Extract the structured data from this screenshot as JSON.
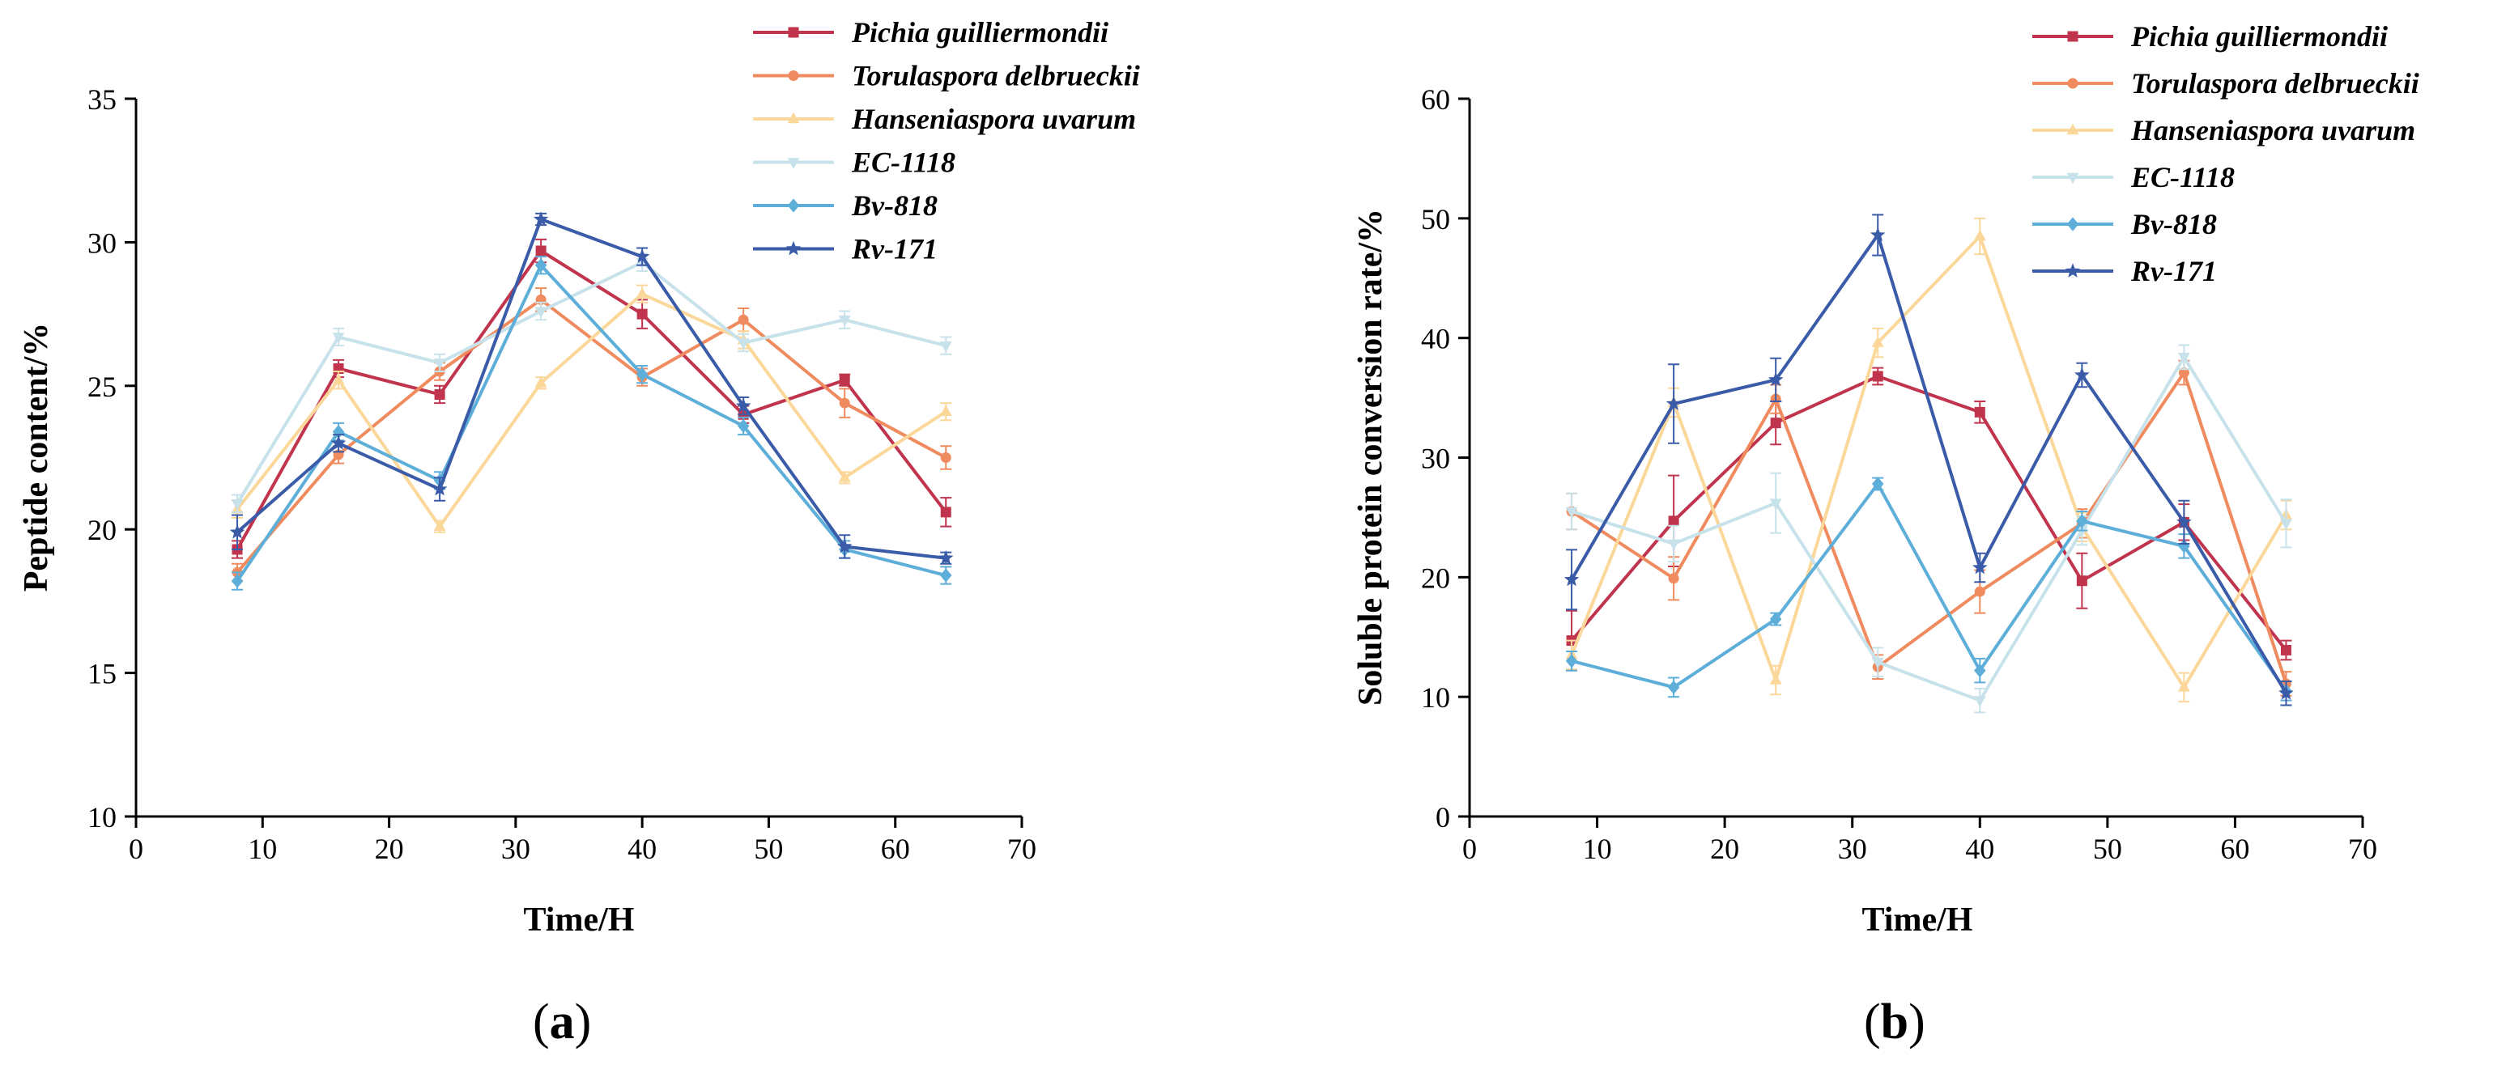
{
  "chart_data": [
    {
      "type": "line",
      "panel_label": "(a)",
      "panel_letter": "a",
      "xlabel": "Time/H",
      "ylabel": "Peptide content/%",
      "xlim": [
        0,
        70
      ],
      "ylim": [
        10,
        35
      ],
      "xticks": [
        0,
        10,
        20,
        30,
        40,
        50,
        60,
        70
      ],
      "yticks": [
        10,
        15,
        20,
        25,
        30,
        35
      ],
      "grid": false,
      "legend_position": "top-right",
      "x": [
        8,
        16,
        24,
        32,
        40,
        48,
        56,
        64
      ],
      "series": [
        {
          "name": "Pichia guilliermondii",
          "color": "#c0344d",
          "marker": "square",
          "values": [
            19.3,
            25.6,
            24.7,
            29.7,
            27.5,
            24.0,
            25.2,
            20.6
          ],
          "errors": [
            0.3,
            0.3,
            0.3,
            0.4,
            0.5,
            0.3,
            0.2,
            0.5
          ]
        },
        {
          "name": "Torulaspora delbrueckii",
          "color": "#ef8b5f",
          "marker": "circle",
          "values": [
            18.5,
            22.6,
            25.5,
            28.0,
            25.3,
            27.3,
            24.4,
            22.5
          ],
          "errors": [
            0.3,
            0.3,
            0.3,
            0.4,
            0.3,
            0.4,
            0.5,
            0.4
          ]
        },
        {
          "name": "Hanseniaspora uvarum",
          "color": "#fbd79a",
          "marker": "triangle",
          "values": [
            20.7,
            25.2,
            20.1,
            25.1,
            28.2,
            26.6,
            21.8,
            24.1
          ],
          "errors": [
            0.3,
            0.3,
            0.2,
            0.2,
            0.3,
            0.3,
            0.2,
            0.3
          ]
        },
        {
          "name": "EC-1118",
          "color": "#c7e2ea",
          "marker": "down-triangle",
          "values": [
            20.9,
            26.7,
            25.8,
            27.6,
            29.3,
            26.5,
            27.3,
            26.4
          ],
          "errors": [
            0.3,
            0.3,
            0.3,
            0.3,
            0.3,
            0.3,
            0.3,
            0.3
          ]
        },
        {
          "name": "Bv-818",
          "color": "#5daed9",
          "marker": "diamond",
          "values": [
            18.2,
            23.4,
            21.7,
            29.2,
            25.4,
            23.6,
            19.3,
            18.4
          ],
          "errors": [
            0.3,
            0.3,
            0.3,
            0.3,
            0.3,
            0.3,
            0.3,
            0.3
          ]
        },
        {
          "name": "Rv-171",
          "color": "#3a5ba8",
          "marker": "star",
          "values": [
            19.9,
            23.0,
            21.4,
            30.8,
            29.5,
            24.3,
            19.4,
            19.0
          ],
          "errors": [
            0.6,
            0.3,
            0.4,
            0.2,
            0.3,
            0.3,
            0.4,
            0.2
          ]
        }
      ]
    },
    {
      "type": "line",
      "panel_label": "(b)",
      "panel_letter": "b",
      "xlabel": "Time/H",
      "ylabel": "Soluble protein conversion rate/%",
      "xlim": [
        0,
        70
      ],
      "ylim": [
        0,
        60
      ],
      "xticks": [
        0,
        10,
        20,
        30,
        40,
        50,
        60,
        70
      ],
      "yticks": [
        0,
        10,
        20,
        30,
        40,
        50,
        60
      ],
      "grid": false,
      "legend_position": "top-right",
      "x": [
        8,
        16,
        24,
        32,
        40,
        48,
        56,
        64
      ],
      "series": [
        {
          "name": "Pichia guilliermondii",
          "color": "#c0344d",
          "marker": "square",
          "values": [
            14.7,
            24.7,
            32.9,
            36.8,
            33.8,
            19.7,
            24.6,
            13.9
          ],
          "errors": [
            2.5,
            3.8,
            1.8,
            0.7,
            0.9,
            2.3,
            1.5,
            0.8
          ]
        },
        {
          "name": "Torulaspora delbrueckii",
          "color": "#ef8b5f",
          "marker": "circle",
          "values": [
            25.5,
            19.9,
            34.9,
            12.5,
            18.8,
            24.5,
            37.1,
            11.1
          ],
          "errors": [
            1.5,
            1.8,
            1.2,
            1.0,
            1.8,
            1.2,
            1.0,
            1.0
          ]
        },
        {
          "name": "Hanseniaspora uvarum",
          "color": "#fbd79a",
          "marker": "triangle",
          "values": [
            13.5,
            34.6,
            11.4,
            39.6,
            48.5,
            24.2,
            10.8,
            25.2
          ],
          "errors": [
            1.2,
            1.2,
            1.2,
            1.2,
            1.5,
            1.2,
            1.2,
            1.2
          ]
        },
        {
          "name": "EC-1118",
          "color": "#c7e2ea",
          "marker": "down-triangle",
          "values": [
            25.5,
            22.8,
            26.2,
            12.9,
            9.7,
            23.9,
            38.4,
            24.5
          ],
          "errors": [
            1.5,
            1.5,
            2.5,
            1.2,
            1.0,
            1.2,
            1.0,
            2.0
          ]
        },
        {
          "name": "Bv-818",
          "color": "#5daed9",
          "marker": "diamond",
          "values": [
            13.0,
            10.8,
            16.5,
            27.8,
            12.2,
            24.7,
            22.6,
            10.5
          ],
          "errors": [
            0.8,
            0.8,
            0.5,
            0.5,
            1.0,
            0.8,
            1.0,
            0.8
          ]
        },
        {
          "name": "Rv-171",
          "color": "#3a5ba8",
          "marker": "star",
          "values": [
            19.8,
            34.5,
            36.5,
            48.6,
            20.8,
            36.9,
            24.6,
            10.3
          ],
          "errors": [
            2.5,
            3.3,
            1.8,
            1.7,
            1.2,
            1.0,
            1.8,
            1.0
          ]
        }
      ]
    }
  ]
}
